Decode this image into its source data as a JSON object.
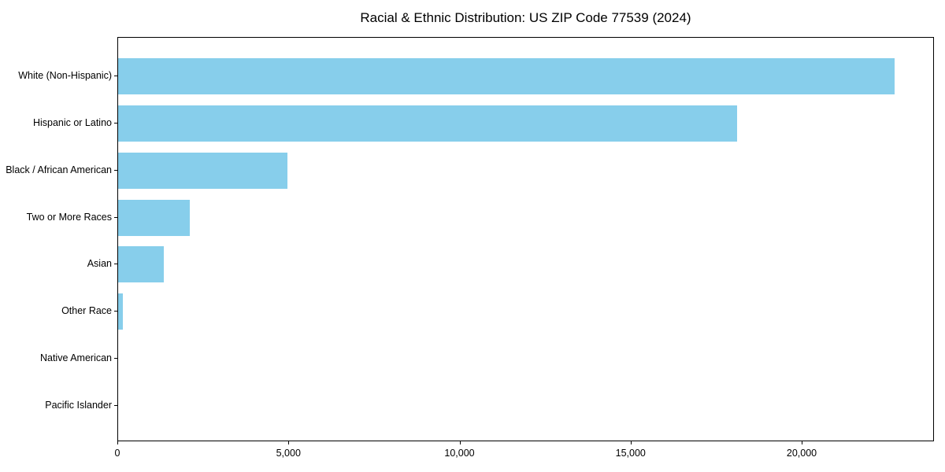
{
  "chart_data": {
    "type": "bar",
    "orientation": "horizontal",
    "title": "Racial & Ethnic Distribution: US ZIP Code 77539 (2024)",
    "categories": [
      "White (Non-Hispanic)",
      "Hispanic or Latino",
      "Black / African American",
      "Two or More Races",
      "Asian",
      "Other Race",
      "Native American",
      "Pacific Islander"
    ],
    "values": [
      22700,
      18100,
      4950,
      2100,
      1330,
      130,
      0,
      0
    ],
    "xlabel": "",
    "ylabel": "",
    "x_ticks": [
      0,
      5000,
      10000,
      15000,
      20000
    ],
    "x_tick_labels": [
      "0",
      "5,000",
      "10,000",
      "15,000",
      "20,000"
    ],
    "xlim": [
      0,
      23866
    ],
    "bar_color": "#87CEEB",
    "axis_color": "#000000",
    "background_color": "#FFFFFF",
    "grid": false,
    "legend": false,
    "y_order": "top-to-bottom (largest first, y-axis inverted)"
  }
}
